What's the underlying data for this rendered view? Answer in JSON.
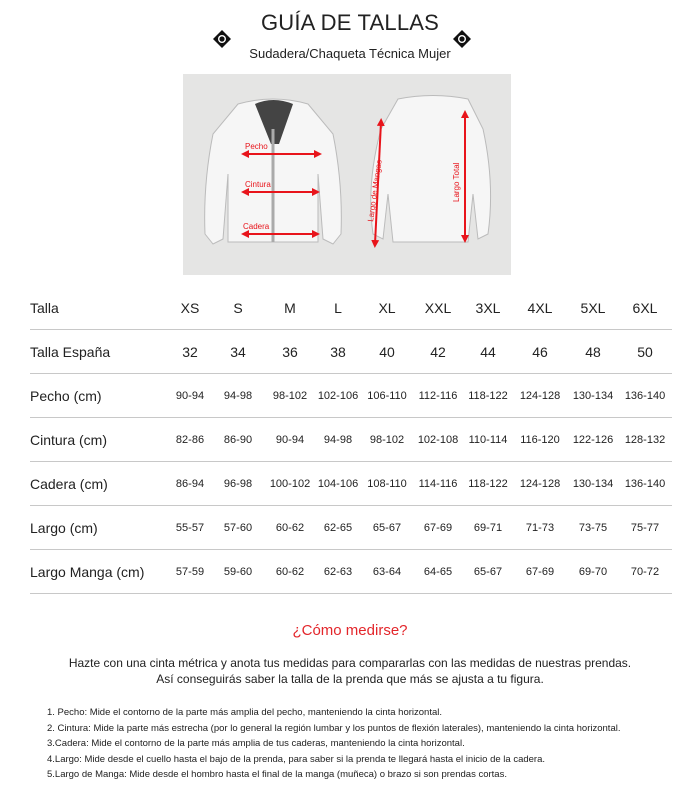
{
  "header": {
    "title": "GUÍA DE TALLAS",
    "subtitle": "Sudadera/Chaqueta Técnica Mujer"
  },
  "figure": {
    "labels": {
      "chest": "Pecho",
      "waist": "Cintura",
      "hip": "Cadera",
      "sleeve": "Largo de Mangas",
      "length": "Largo Total"
    },
    "arrow_color": "#e8141b"
  },
  "table": {
    "headers": [
      "Talla",
      "XS",
      "S",
      "M",
      "L",
      "XL",
      "XXL",
      "3XL",
      "4XL",
      "5XL",
      "6XL"
    ],
    "rows": [
      {
        "label": "Talla España",
        "values": [
          "32",
          "34",
          "36",
          "38",
          "40",
          "42",
          "44",
          "46",
          "48",
          "50"
        ]
      },
      {
        "label": "Pecho (cm)",
        "values": [
          "90-94",
          "94-98",
          "98-102",
          "102-106",
          "106-110",
          "112-116",
          "118-122",
          "124-128",
          "130-134",
          "136-140"
        ]
      },
      {
        "label": "Cintura (cm)",
        "values": [
          "82-86",
          "86-90",
          "90-94",
          "94-98",
          "98-102",
          "102-108",
          "110-114",
          "116-120",
          "122-126",
          "128-132"
        ]
      },
      {
        "label": "Cadera (cm)",
        "values": [
          "86-94",
          "96-98",
          "100-102",
          "104-106",
          "108-110",
          "114-116",
          "118-122",
          "124-128",
          "130-134",
          "136-140"
        ]
      },
      {
        "label": "Largo (cm)",
        "values": [
          "55-57",
          "57-60",
          "60-62",
          "62-65",
          "65-67",
          "67-69",
          "69-71",
          "71-73",
          "73-75",
          "75-77"
        ]
      },
      {
        "label": "Largo Manga (cm)",
        "values": [
          "57-59",
          "59-60",
          "60-62",
          "62-63",
          "63-64",
          "64-65",
          "65-67",
          "67-69",
          "69-70",
          "70-72"
        ]
      }
    ]
  },
  "howto": {
    "title": "¿Cómo medirse?",
    "intro": [
      "Hazte con una cinta métrica y anota tus medidas para compararlas con las medidas de nuestras prendas.",
      "Así conseguirás saber la talla de la prenda que más se ajusta a tu figura."
    ],
    "steps": [
      "1. Pecho: Mide el contorno de la parte más amplia del pecho, manteniendo la cinta horizontal.",
      "2. Cintura: Mide la parte más estrecha (por lo general la región lumbar y los puntos de flexión laterales), manteniendo la cinta horizontal.",
      "3.Cadera: Mide el contorno de la parte más amplia de tus caderas, manteniendo la cinta horizontal.",
      "4.Largo: Mide desde el cuello hasta el bajo de la prenda, para saber si la prenda te llegará hasta el inicio de la cadera.",
      "5.Largo de Manga: Mide desde el hombro hasta el final de la manga (muñeca) o brazo si son prendas cortas."
    ]
  },
  "colors": {
    "accent": "#e3262b"
  }
}
